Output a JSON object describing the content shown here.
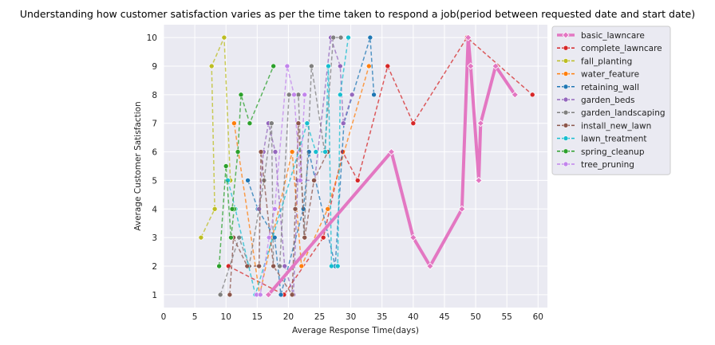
{
  "chart_data": {
    "type": "line",
    "title": "Understanding how customer satisfaction varies as per the time taken to respond a job(period between requested date and start date)",
    "xlabel": "Average Response Time(days)",
    "ylabel": "Average Customer Satisfaction",
    "xlim": [
      0,
      61.5
    ],
    "ylim": [
      0.55,
      10.45
    ],
    "x_ticks": [
      0,
      5,
      10,
      15,
      20,
      25,
      30,
      35,
      40,
      45,
      50,
      55,
      60
    ],
    "y_ticks": [
      1,
      2,
      3,
      4,
      5,
      6,
      7,
      8,
      9,
      10
    ],
    "grid": true,
    "legend_position": "upper right, outside plot",
    "series": [
      {
        "name": "basic_lawncare",
        "color": "#e377c2",
        "style": "solid",
        "marker": "diamond",
        "width": 4,
        "x": [
          16.8,
          36.5,
          40.0,
          42.7,
          47.8,
          48.8,
          49.2,
          50.5,
          50.8,
          53.2,
          56.3
        ],
        "y": [
          1,
          6,
          3,
          2,
          4,
          10,
          9,
          5,
          7,
          9,
          8
        ]
      },
      {
        "name": "complete_lawncare",
        "color": "#d62728",
        "style": "dashed",
        "marker": "circle",
        "width": 1.5,
        "x": [
          10.4,
          19.3,
          25.6,
          28.7,
          31.1,
          35.9,
          40.0,
          48.6,
          59.1
        ],
        "y": [
          2,
          1,
          3,
          6,
          5,
          9,
          7,
          10,
          8
        ]
      },
      {
        "name": "fall_planting",
        "color": "#bcbd22",
        "style": "dashed",
        "marker": "circle",
        "width": 1.5,
        "x": [
          6.0,
          8.2,
          7.7,
          9.7,
          10.7
        ],
        "y": [
          3,
          4,
          9,
          10,
          5
        ]
      },
      {
        "name": "water_feature",
        "color": "#ff7f0e",
        "style": "dashed",
        "marker": "circle",
        "width": 1.5,
        "x": [
          11.3,
          15.4,
          17.4,
          20.6,
          22.1,
          26.3,
          32.9
        ],
        "y": [
          7,
          1,
          3,
          6,
          2,
          4,
          9
        ]
      },
      {
        "name": "retaining_wall",
        "color": "#1f77b4",
        "style": "dashed",
        "marker": "circle",
        "width": 1.5,
        "x": [
          13.5,
          15.1,
          17.8,
          18.8,
          22.4,
          23.3,
          27.5,
          28.9,
          33.1,
          33.7
        ],
        "y": [
          5,
          4,
          3,
          1,
          4,
          6,
          2,
          7,
          10,
          8
        ]
      },
      {
        "name": "garden_beds",
        "color": "#9467bd",
        "style": "dashed",
        "marker": "circle",
        "width": 1.5,
        "x": [
          15.3,
          16.0,
          16.8,
          17.9,
          19.4,
          20.8,
          21.5,
          24.2,
          26.8,
          28.3,
          28.8,
          30.2
        ],
        "y": [
          4,
          6,
          7,
          6,
          2,
          1,
          5,
          5,
          10,
          9,
          7,
          8
        ]
      },
      {
        "name": "garden_landscaping",
        "color": "#7f7f7f",
        "style": "dashed",
        "marker": "circle",
        "width": 1.5,
        "x": [
          9.1,
          12.1,
          13.7,
          16.1,
          17.3,
          17.6,
          18.6,
          20.1,
          21.6,
          22.5,
          23.7,
          25.8,
          27.2,
          28.4
        ],
        "y": [
          1,
          3,
          2,
          5,
          7,
          2,
          2,
          8,
          8,
          3,
          9,
          6,
          10,
          10
        ]
      },
      {
        "name": "install_new_lawn",
        "color": "#8c564b",
        "style": "dashed",
        "marker": "circle",
        "width": 1.5,
        "x": [
          10.6,
          11.2,
          13.4,
          15.3,
          15.6,
          17.6,
          20.6,
          21.1,
          21.6,
          22.6,
          24.1,
          26.3
        ],
        "y": [
          1,
          3,
          2,
          2,
          6,
          2,
          1,
          4,
          7,
          3,
          5,
          6
        ]
      },
      {
        "name": "lawn_treatment",
        "color": "#17becf",
        "style": "dashed",
        "marker": "circle",
        "width": 1.5,
        "x": [
          10.3,
          11.5,
          14.7,
          23.0,
          24.4,
          25.9,
          26.4,
          26.9,
          27.9,
          28.3,
          29.6
        ],
        "y": [
          5,
          4,
          1,
          7,
          6,
          6,
          9,
          2,
          2,
          8,
          10
        ]
      },
      {
        "name": "spring_cleanup",
        "color": "#2ca02c",
        "style": "dashed",
        "marker": "circle",
        "width": 1.5,
        "x": [
          8.9,
          10.0,
          10.8,
          11.3,
          11.0,
          11.9,
          12.4,
          13.8,
          17.6
        ],
        "y": [
          2,
          5.5,
          3,
          4,
          4,
          6,
          8,
          7,
          9
        ]
      },
      {
        "name": "tree_pruning",
        "color": "#c285ec",
        "style": "dashed",
        "marker": "circle",
        "width": 1.5,
        "x": [
          14.9,
          15.5,
          16.9,
          17.8,
          19.8,
          20.9,
          21.9,
          22.6
        ],
        "y": [
          1,
          1,
          3,
          4,
          9,
          8,
          5,
          8
        ]
      }
    ]
  }
}
